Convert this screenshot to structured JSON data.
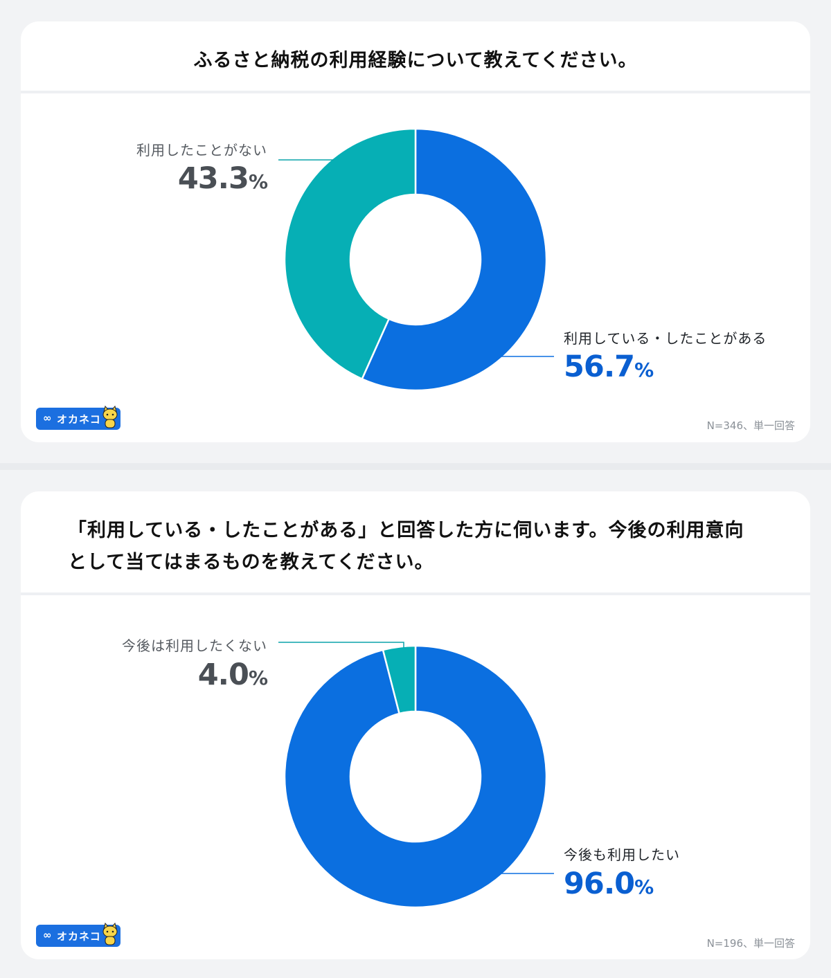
{
  "chart_data": [
    {
      "type": "pie",
      "title": "ふるさと納税の利用経験について教えてください。",
      "slices": [
        {
          "label": "利用している・したことがある",
          "value": 56.7,
          "color": "#0b6fe0"
        },
        {
          "label": "利用したことがない",
          "value": 43.3,
          "color": "#06afb5"
        }
      ],
      "value_labels": [
        "56.7",
        "43.3"
      ],
      "percent_sign": "%",
      "note": "N=346、単一回答"
    },
    {
      "type": "pie",
      "title_lines": [
        "「利用している・したことがある」と回答した方に伺います。今後の利用意向",
        "として当てはまるものを教えてください。"
      ],
      "slices": [
        {
          "label": "今後も利用したい",
          "value": 96.0,
          "color": "#0b6fe0"
        },
        {
          "label": "今後は利用したくない",
          "value": 4.0,
          "color": "#06afb5"
        }
      ],
      "value_labels": [
        "96.0",
        "4.0"
      ],
      "percent_sign": "%",
      "note": "N=196、単一回答"
    }
  ],
  "logo": {
    "text": "オカネコ",
    "glyph": "∞",
    "icon": "cat-mascot-icon"
  }
}
